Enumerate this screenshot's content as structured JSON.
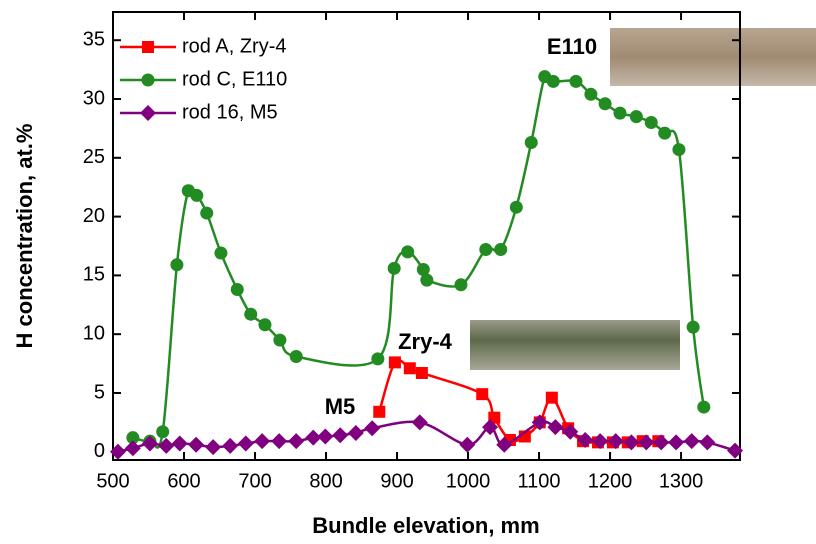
{
  "chart_data": {
    "type": "line",
    "x_label": "Bundle elevation, mm",
    "y_label": "H concentration, at.%",
    "xlim": [
      500,
      1383
    ],
    "ylim": [
      -0.7,
      37.4
    ],
    "xticks": [
      500,
      600,
      700,
      800,
      900,
      1000,
      1100,
      1200,
      1300
    ],
    "yticks": [
      0,
      5,
      10,
      15,
      20,
      25,
      30,
      35
    ],
    "legend": "upper left",
    "series": [
      {
        "name": "rod A, Zry-4",
        "color": "#ff0000",
        "marker": "square",
        "x": [
          875,
          897,
          918,
          935,
          1020,
          1037,
          1059,
          1080,
          1101,
          1118,
          1141,
          1162,
          1183,
          1204,
          1225,
          1246,
          1268
        ],
        "values": [
          3.4,
          7.6,
          7.1,
          6.7,
          4.9,
          2.9,
          1.0,
          1.3,
          2.5,
          4.6,
          2.0,
          0.9,
          0.8,
          0.8,
          0.8,
          0.9,
          0.9
        ]
      },
      {
        "name": "rod C, E110",
        "color": "#228b22",
        "marker": "circle",
        "x": [
          528,
          552,
          570,
          590,
          606,
          618,
          632,
          652,
          675,
          694,
          714,
          735,
          758,
          873,
          896,
          915,
          937,
          942,
          990,
          1025,
          1046,
          1068,
          1089,
          1108,
          1120,
          1152,
          1173,
          1193,
          1214,
          1237,
          1258,
          1277,
          1297,
          1317,
          1332
        ],
        "values": [
          1.2,
          0.9,
          1.7,
          15.9,
          22.2,
          21.8,
          20.3,
          16.9,
          13.8,
          11.7,
          10.8,
          9.5,
          8.1,
          7.9,
          15.6,
          17.0,
          15.5,
          14.6,
          14.2,
          17.2,
          17.2,
          20.8,
          26.3,
          31.9,
          31.5,
          31.5,
          30.4,
          29.6,
          28.8,
          28.5,
          28.0,
          27.1,
          25.7,
          10.6,
          3.8
        ]
      },
      {
        "name": "rod 16, M5",
        "color": "#800080",
        "marker": "diamond",
        "x": [
          507,
          528,
          552,
          575,
          594,
          617,
          641,
          665,
          687,
          710,
          734,
          758,
          782,
          799,
          820,
          842,
          865,
          932,
          999,
          1031,
          1051,
          1101,
          1123,
          1144,
          1165,
          1186,
          1208,
          1230,
          1251,
          1272,
          1293,
          1315,
          1337,
          1376
        ],
        "values": [
          0.0,
          0.3,
          0.7,
          0.5,
          0.7,
          0.6,
          0.4,
          0.5,
          0.7,
          0.9,
          0.9,
          0.9,
          1.2,
          1.3,
          1.4,
          1.6,
          2.0,
          2.5,
          0.6,
          2.1,
          0.6,
          2.5,
          2.1,
          1.7,
          1.0,
          0.9,
          0.9,
          0.8,
          0.8,
          0.8,
          0.8,
          0.9,
          0.8,
          0.1
        ]
      }
    ],
    "annotations": [
      {
        "text": "E110",
        "color": "#3a9a3a"
      },
      {
        "text": "Zry-4",
        "color": "#ff0000"
      },
      {
        "text": "M5",
        "color": "#8a1a9a"
      }
    ]
  }
}
